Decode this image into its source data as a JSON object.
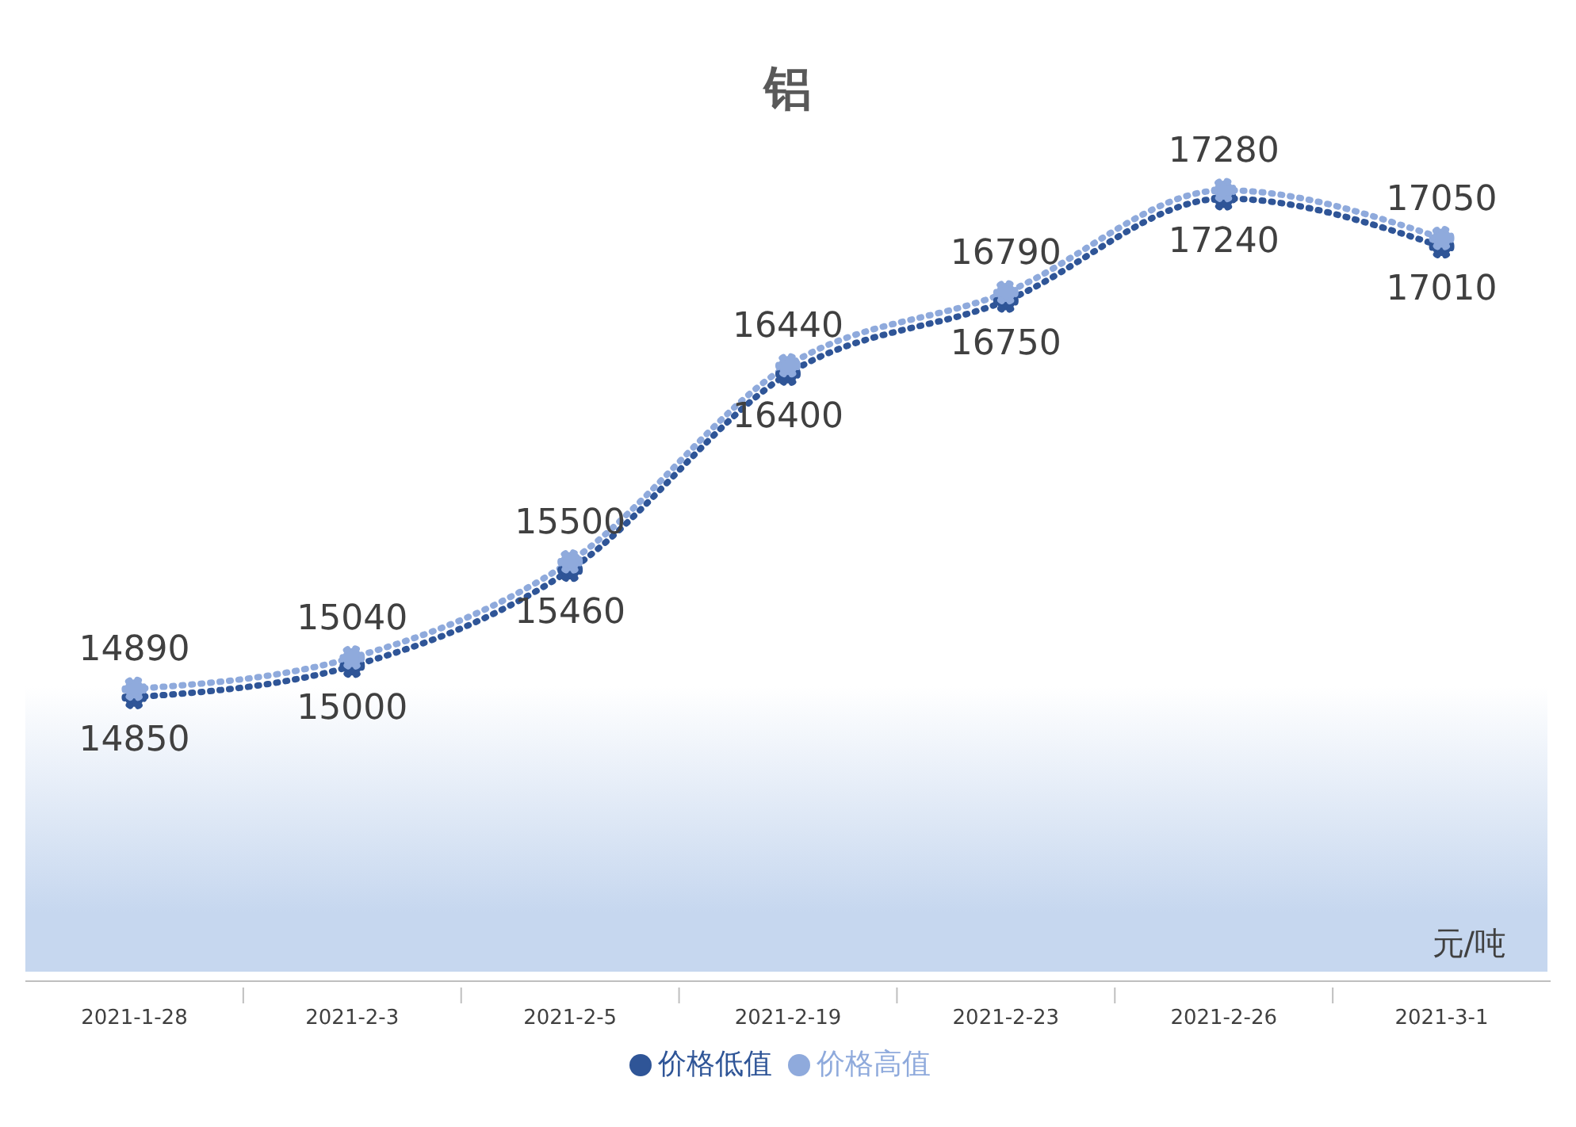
{
  "chart_data": {
    "type": "line",
    "title": "铝",
    "categories": [
      "2021-1-28",
      "2021-2-3",
      "2021-2-5",
      "2021-2-19",
      "2021-2-23",
      "2021-2-26",
      "2021-3-1"
    ],
    "series": [
      {
        "name": "价格低值",
        "color": "#2f5597",
        "values": [
          14850,
          15000,
          15460,
          16400,
          16750,
          17240,
          17010
        ]
      },
      {
        "name": "价格高值",
        "color": "#8faadc",
        "values": [
          14890,
          15040,
          15500,
          16440,
          16790,
          17280,
          17050
        ]
      }
    ],
    "annotations": [
      "元/吨"
    ],
    "data_labels": true,
    "marker": "circle",
    "line_style": "dotted",
    "legend": "bottom",
    "grid": false,
    "tick_labels": "x"
  }
}
